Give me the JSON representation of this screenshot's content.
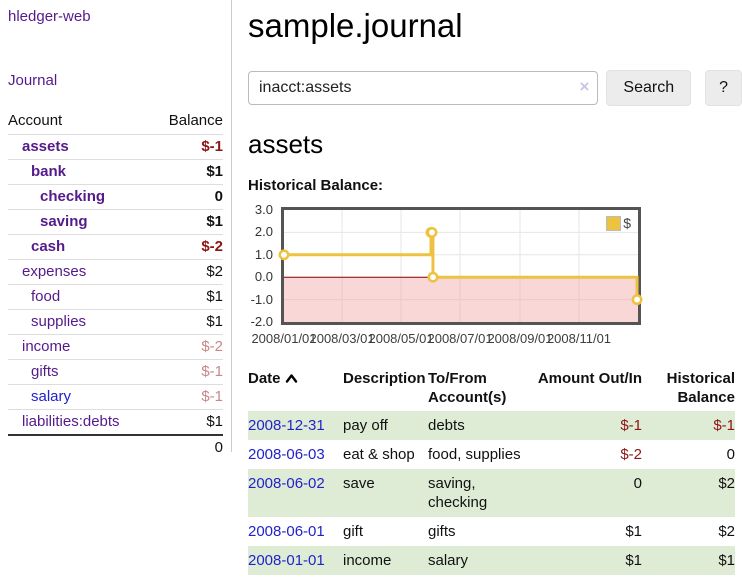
{
  "app": {
    "name": "hledger-web"
  },
  "nav": {
    "journal": "Journal"
  },
  "page": {
    "title": "sample.journal"
  },
  "colors": {
    "link_visited": "#551a8b",
    "link_unvisited": "#2222cc",
    "negative": "#8c1515",
    "negative_soft": "#c98787",
    "row_stripe_green": "#deecd6",
    "chart_line": "#edc240"
  },
  "sidebar": {
    "columns": {
      "account": "Account",
      "balance": "Balance"
    },
    "accounts": [
      {
        "name": "assets",
        "balance": "$-1",
        "indent": 1
      },
      {
        "name": "bank",
        "balance": "$1",
        "indent": 2
      },
      {
        "name": "checking",
        "balance": "0",
        "indent": 3
      },
      {
        "name": "saving",
        "balance": "$1",
        "indent": 3
      },
      {
        "name": "cash",
        "balance": "$-2",
        "indent": 2
      },
      {
        "name": "expenses",
        "balance": "$2",
        "indent": 1
      },
      {
        "name": "food",
        "balance": "$1",
        "indent": 2
      },
      {
        "name": "supplies",
        "balance": "$1",
        "indent": 2
      },
      {
        "name": "income",
        "balance": "$-2",
        "indent": 1
      },
      {
        "name": "gifts",
        "balance": "$-1",
        "indent": 2
      },
      {
        "name": "salary",
        "balance": "$-1",
        "indent": 2
      },
      {
        "name": "liabilities:debts",
        "balance": "$1",
        "indent": 1
      }
    ],
    "total": "0"
  },
  "search": {
    "query": "inacct:assets",
    "clear_icon": "×",
    "search_button": "Search",
    "help_button": "?"
  },
  "account_view": {
    "heading": "assets",
    "chart_title": "Historical Balance:"
  },
  "chart_data": {
    "type": "line",
    "title": "Historical Balance",
    "series": [
      {
        "name": "$",
        "color": "#edc240",
        "step": true,
        "points": [
          [
            "2008/01/01",
            1
          ],
          [
            "2008/06/01",
            2
          ],
          [
            "2008/06/02",
            2
          ],
          [
            "2008/06/03",
            0
          ],
          [
            "2008/12/31",
            -1
          ]
        ]
      }
    ],
    "ylim": [
      -2,
      3
    ],
    "yticks": [
      "3.0",
      "2.0",
      "1.0",
      "0.0",
      "-1.0",
      "-2.0"
    ],
    "xticks": [
      "2008/01/01",
      "2008/03/01",
      "2008/05/01",
      "2008/07/01",
      "2008/09/01",
      "2008/11/01"
    ],
    "x_range": [
      "2008/01/01",
      "2008/12/31"
    ],
    "grid": true,
    "legend": {
      "label": "$",
      "position": "top-right",
      "swatch_color": "#edc240"
    },
    "negative_region_fill": "#f4a0a0",
    "zero_line_color": "#8b0000"
  },
  "register": {
    "headers": {
      "date": "Date",
      "description": "Description",
      "accounts": "To/From Account(s)",
      "amount": "Amount Out/In",
      "balance": "Historical Balance"
    },
    "rows": [
      {
        "date": "2008-12-31",
        "description": "pay off",
        "accounts": "debts",
        "amount": "$-1",
        "balance": "$-1"
      },
      {
        "date": "2008-06-03",
        "description": "eat & shop",
        "accounts": "food, supplies",
        "amount": "$-2",
        "balance": "0"
      },
      {
        "date": "2008-06-02",
        "description": "save",
        "accounts": "saving, checking",
        "amount": "0",
        "balance": "$2"
      },
      {
        "date": "2008-06-01",
        "description": "gift",
        "accounts": "gifts",
        "amount": "$1",
        "balance": "$2"
      },
      {
        "date": "2008-01-01",
        "description": "income",
        "accounts": "salary",
        "amount": "$1",
        "balance": "$1"
      }
    ]
  }
}
